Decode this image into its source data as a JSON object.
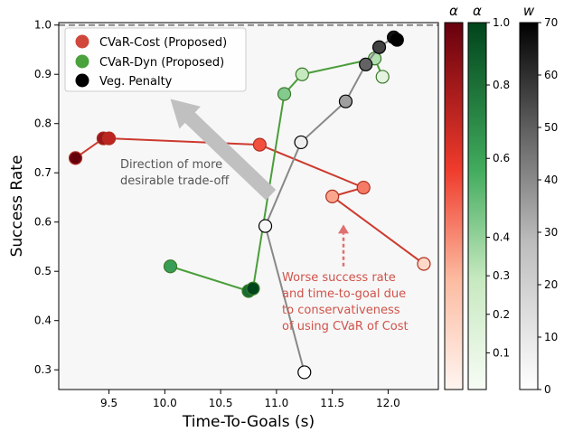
{
  "chart_data": {
    "type": "scatter",
    "xlabel": "Time-To-Goals (s)",
    "ylabel": "Success Rate",
    "xlim": [
      9.05,
      12.45
    ],
    "ylim": [
      0.26,
      1.005
    ],
    "x_ticks": [
      9.5,
      10.0,
      10.5,
      11.0,
      11.5,
      12.0
    ],
    "x_tick_labels": [
      "9.5",
      "10.0",
      "10.5",
      "11.0",
      "11.5",
      "12.0"
    ],
    "y_ticks": [
      0.3,
      0.4,
      0.5,
      0.6,
      0.7,
      0.8,
      0.9,
      1.0
    ],
    "y_tick_labels": [
      "0.3",
      "0.4",
      "0.5",
      "0.6",
      "0.7",
      "0.8",
      "0.9",
      "1.0"
    ],
    "reference_line_y": 1.0,
    "legend_position": "top-left",
    "series": [
      {
        "name": "CVaR-Cost (Proposed)",
        "color": "#cc3a2e",
        "legend_color": "#d0483b",
        "colormap": "reds",
        "x": [
          9.2,
          9.45,
          9.5,
          10.85,
          11.78,
          11.5,
          12.32
        ],
        "y": [
          0.73,
          0.77,
          0.77,
          0.757,
          0.67,
          0.652,
          0.515
        ],
        "shade": [
          1.0,
          0.85,
          0.75,
          0.55,
          0.45,
          0.35,
          0.15
        ]
      },
      {
        "name": "CVaR-Dyn (Proposed)",
        "color": "#4a9e3a",
        "legend_color": "#4aa23c",
        "colormap": "greens",
        "x": [
          10.05,
          10.75,
          10.79,
          11.07,
          11.23,
          11.88,
          11.95
        ],
        "y": [
          0.51,
          0.46,
          0.465,
          0.86,
          0.9,
          0.932,
          0.895
        ],
        "shade": [
          0.65,
          0.85,
          1.0,
          0.45,
          0.3,
          0.35,
          0.12
        ]
      },
      {
        "name": "Veg. Penalty",
        "color": "#888888",
        "legend_color": "#000000",
        "colormap": "greys",
        "x": [
          11.25,
          10.9,
          11.22,
          11.62,
          11.8,
          11.92,
          12.05,
          12.08
        ],
        "y": [
          0.295,
          0.592,
          0.762,
          0.845,
          0.92,
          0.955,
          0.975,
          0.97
        ],
        "shade": [
          0.0,
          0.05,
          0.1,
          0.5,
          0.7,
          0.8,
          0.95,
          1.0
        ]
      }
    ],
    "annotations": [
      {
        "text": [
          "Direction of more",
          "desirable trade-off"
        ],
        "color": "#555555",
        "x": 9.6,
        "y": 0.71,
        "arrow_from": [
          10.95,
          0.655
        ],
        "arrow_to": [
          10.05,
          0.85
        ],
        "arrow_color": "#c0c0c0"
      },
      {
        "text": [
          "Worse success rate",
          "and time-to-goal due",
          "to conservativeness",
          "of using CVaR of Cost"
        ],
        "color": "#d0534a",
        "x": 11.05,
        "y": 0.48,
        "arrow_from": [
          11.6,
          0.51
        ],
        "arrow_to": [
          11.6,
          0.595
        ],
        "arrow_color": "#e07070"
      }
    ],
    "colorbars": [
      {
        "label": "α",
        "colormap": "reds",
        "min": 0.0,
        "max": 1.0,
        "ticks": [],
        "tick_labels": []
      },
      {
        "label": "α",
        "colormap": "greens",
        "min": 0.0,
        "max": 1.0,
        "ticks": [
          0.1,
          0.2,
          0.3,
          0.4,
          0.6,
          0.8,
          1.0
        ],
        "tick_labels": [
          "0.1",
          "0.2",
          "0.3",
          "0.4",
          "0.6",
          "0.8",
          "1.0"
        ],
        "tick_positions": [
          0.1,
          0.205,
          0.31,
          0.415,
          0.63,
          0.83,
          1.0
        ]
      },
      {
        "label": "w",
        "colormap": "greys",
        "min": 0,
        "max": 70,
        "ticks": [
          0,
          10,
          20,
          30,
          40,
          50,
          60,
          70
        ],
        "tick_labels": [
          "0",
          "10",
          "20",
          "30",
          "40",
          "50",
          "60",
          "70"
        ]
      }
    ]
  }
}
